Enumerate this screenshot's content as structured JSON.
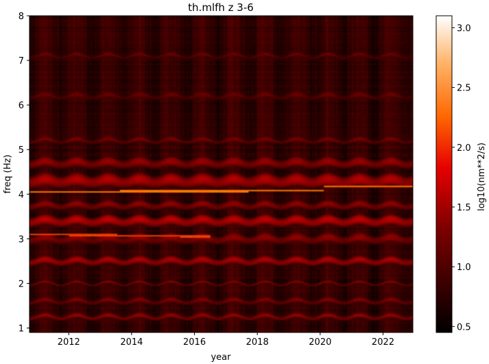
{
  "chart_data": {
    "type": "heatmap",
    "title": "th.mlfh z 3-6",
    "xlabel": "year",
    "ylabel": "freq (Hz)",
    "colorbar_label": "log10(nm**2/s)",
    "colormap": "gist_heat",
    "xlim": [
      2010.75,
      2022.95
    ],
    "ylim": [
      0.9,
      8.0
    ],
    "clim": [
      0.45,
      3.1
    ],
    "x_ticks": [
      2012,
      2014,
      2016,
      2018,
      2020,
      2022
    ],
    "x_tick_labels": [
      "2012",
      "2014",
      "2016",
      "2018",
      "2020",
      "2022"
    ],
    "y_ticks": [
      1,
      2,
      3,
      4,
      5,
      6,
      7,
      8
    ],
    "y_tick_labels": [
      "1",
      "2",
      "3",
      "4",
      "5",
      "6",
      "7",
      "8"
    ],
    "colorbar_ticks": [
      0.5,
      1.0,
      1.5,
      2.0,
      2.5,
      3.0
    ],
    "colorbar_tick_labels": [
      "0.5",
      "1.0",
      "1.5",
      "2.0",
      "2.5",
      "3.0"
    ],
    "background_level": 0.8,
    "bands": [
      {
        "freq": 1.25,
        "level": 1.35,
        "width": 0.05
      },
      {
        "freq": 1.6,
        "level": 1.2,
        "width": 0.06
      },
      {
        "freq": 2.0,
        "level": 1.25,
        "width": 0.03
      },
      {
        "freq": 2.5,
        "level": 1.5,
        "width": 0.07
      },
      {
        "freq": 3.0,
        "level": 1.3,
        "width": 0.1
      },
      {
        "freq": 3.4,
        "level": 1.6,
        "width": 0.09
      },
      {
        "freq": 3.75,
        "level": 1.3,
        "width": 0.08
      },
      {
        "freq": 4.3,
        "level": 1.55,
        "width": 0.12
      },
      {
        "freq": 4.7,
        "level": 1.35,
        "width": 0.1
      },
      {
        "freq": 5.2,
        "level": 1.15,
        "width": 0.06
      },
      {
        "freq": 6.2,
        "level": 1.05,
        "width": 0.08
      },
      {
        "freq": 7.1,
        "level": 1.05,
        "width": 0.06
      }
    ],
    "bright_lines": [
      {
        "freq_start": 4.05,
        "freq_end": 4.08,
        "x_start": 2010.75,
        "x_end": 2020.1,
        "level": 2.4
      },
      {
        "freq_start": 4.18,
        "freq_end": 4.18,
        "x_start": 2020.1,
        "x_end": 2022.95,
        "level": 2.4
      },
      {
        "freq_start": 3.1,
        "freq_end": 3.05,
        "x_start": 2010.75,
        "x_end": 2016.5,
        "level": 2.1
      }
    ]
  }
}
